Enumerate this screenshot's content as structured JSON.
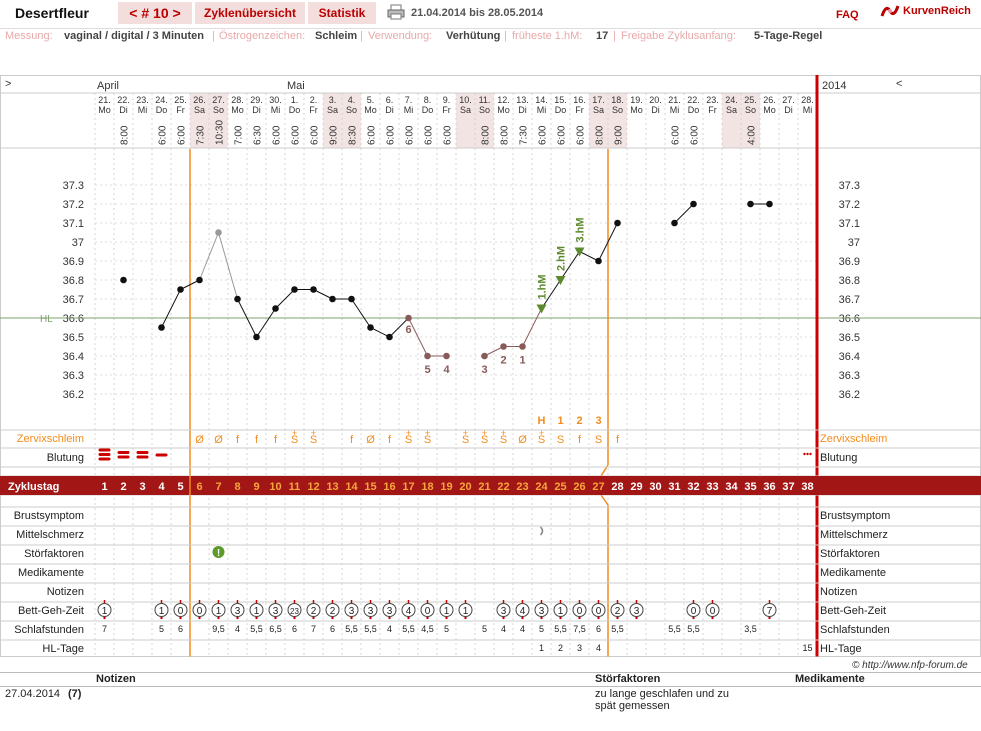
{
  "header": {
    "user": "Desertfleur",
    "cycle_tab": "< # 10 >",
    "overview_tab": "Zyklenübersicht",
    "stats_tab": "Statistik",
    "print_icon": "printer-icon",
    "range": "21.04.2014 bis 28.05.2014",
    "faq": "FAQ",
    "logo_text": "KurvenReich",
    "logo_icon": "kurvenreich-logo-icon"
  },
  "info": {
    "messung_label": "Messung:",
    "messung_value": "vaginal / digital / 3 Minuten",
    "oestro_label": "Östrogenzeichen:",
    "oestro_value": "Schleim",
    "verwendung_label": "Verwendung:",
    "verwendung_value": "Verhütung",
    "fruehste_label": "früheste 1.hM:",
    "fruehste_value": "17",
    "freigabe_label": "Freigabe Zyklusanfang:",
    "freigabe_value": "5-Tage-Regel"
  },
  "chart": {
    "nav_left": ">",
    "nav_right": "<",
    "year": "2014",
    "month1": "April",
    "month2": "Mai",
    "hl_label": "HL",
    "hl_value": 36.6,
    "y_ticks": [
      "37.3",
      "37.2",
      "37.1",
      "37",
      "36.9",
      "36.8",
      "36.7",
      "36.6",
      "36.5",
      "36.4",
      "36.3",
      "36.2"
    ],
    "days": [
      "21.",
      "22.",
      "23.",
      "24.",
      "25.",
      "26.",
      "27.",
      "28.",
      "29.",
      "30.",
      "1.",
      "2.",
      "3.",
      "4.",
      "5.",
      "6.",
      "7.",
      "8.",
      "9.",
      "10.",
      "11.",
      "12.",
      "13.",
      "14.",
      "15.",
      "16.",
      "17.",
      "18.",
      "19.",
      "20.",
      "21.",
      "22.",
      "23.",
      "24.",
      "25.",
      "26.",
      "27.",
      "28."
    ],
    "weekdays": [
      "Mo",
      "Di",
      "Mi",
      "Do",
      "Fr",
      "Sa",
      "So",
      "Mo",
      "Di",
      "Mi",
      "Do",
      "Fr",
      "Sa",
      "So",
      "Mo",
      "Di",
      "Mi",
      "Do",
      "Fr",
      "Sa",
      "So",
      "Mo",
      "Di",
      "Mi",
      "Do",
      "Fr",
      "Sa",
      "So",
      "Mo",
      "Di",
      "Mi",
      "Do",
      "Fr",
      "Sa",
      "So",
      "Mo",
      "Di",
      "Mi"
    ],
    "times": [
      "",
      "8:00",
      "",
      "6:00",
      "6:00",
      "7:30",
      "10:30",
      "7:00",
      "6:30",
      "6:00",
      "6:00",
      "6:00",
      "9:00",
      "8:30",
      "6:00",
      "6:00",
      "6:00",
      "6:00",
      "6:00",
      "",
      "8:00",
      "8:00",
      "7:30",
      "6:00",
      "6:00",
      "6:00",
      "8:00",
      "9:00",
      "",
      "",
      "6:00",
      "6:00",
      "",
      "",
      "4:00",
      "",
      "",
      ""
    ],
    "weekend_cols": [
      5,
      6,
      12,
      13,
      19,
      20,
      26,
      27,
      33,
      34
    ],
    "temps": [
      null,
      36.8,
      null,
      36.55,
      36.75,
      36.8,
      37.05,
      36.7,
      36.5,
      36.65,
      36.75,
      36.75,
      36.7,
      36.7,
      36.55,
      36.5,
      36.6,
      36.4,
      36.4,
      null,
      36.4,
      36.45,
      36.45,
      36.65,
      36.8,
      36.95,
      36.9,
      37.1,
      null,
      null,
      37.1,
      37.2,
      null,
      null,
      37.2,
      37.2,
      null,
      null
    ],
    "excluded": [
      6,
      16,
      17,
      18,
      20,
      21,
      22
    ],
    "count_labels": [
      {
        "i": 16,
        "t": "6"
      },
      {
        "i": 17,
        "t": "5"
      },
      {
        "i": 18,
        "t": "4"
      },
      {
        "i": 20,
        "t": "3"
      },
      {
        "i": 21,
        "t": "2"
      },
      {
        "i": 22,
        "t": "1"
      }
    ],
    "hm_labels": [
      {
        "i": 23,
        "t": "1.hM"
      },
      {
        "i": 24,
        "t": "2.hM"
      },
      {
        "i": 25,
        "t": "3.hM"
      }
    ],
    "mucus_counts": [
      {
        "i": 23,
        "t": "H"
      },
      {
        "i": 24,
        "t": "1"
      },
      {
        "i": 25,
        "t": "2"
      },
      {
        "i": 26,
        "t": "3"
      }
    ],
    "mucus_label": "Zervixschleim",
    "mucus": [
      "",
      "",
      "",
      "",
      "",
      "Ø",
      "Ø",
      "f",
      "f",
      "f",
      "S+",
      "S+",
      "",
      "f",
      "Ø",
      "f",
      "S+",
      "S+",
      "",
      "S+",
      "S+",
      "S+",
      "Ø",
      "S+",
      "S",
      "f",
      "S",
      "f",
      "",
      "",
      "",
      "",
      "",
      "",
      "",
      "",
      "",
      ""
    ],
    "bleeding_label": "Blutung",
    "bleeding": [
      3,
      2,
      2,
      1,
      0,
      0,
      0,
      0,
      0,
      0,
      0,
      0,
      0,
      0,
      0,
      0,
      0,
      0,
      0,
      0,
      0,
      0,
      0,
      0,
      0,
      0,
      0,
      0,
      0,
      0,
      0,
      0,
      0,
      0,
      0,
      0,
      0,
      3
    ],
    "cycle_label": "Zyklustag",
    "cycle_days": [
      "1",
      "2",
      "3",
      "4",
      "5",
      "6",
      "7",
      "8",
      "9",
      "10",
      "11",
      "12",
      "13",
      "14",
      "15",
      "16",
      "17",
      "18",
      "19",
      "20",
      "21",
      "22",
      "23",
      "24",
      "25",
      "26",
      "27",
      "28",
      "29",
      "30",
      "31",
      "32",
      "33",
      "34",
      "35",
      "36",
      "37",
      "38"
    ],
    "rows": [
      "Brustsymptom",
      "Mittelschmerz",
      "Störfaktoren",
      "Medikamente",
      "Notizen",
      "Bett-Geh-Zeit",
      "Schlafstunden",
      "HL-Tage"
    ],
    "disturb_icon": "warning-icon",
    "bedtime": [
      "1",
      "",
      "",
      "1",
      "0",
      "0",
      "1",
      "3",
      "1",
      "3",
      "23",
      "2",
      "2",
      "3",
      "3",
      "3",
      "4",
      "0",
      "1",
      "1",
      "",
      "3",
      "4",
      "3",
      "1",
      "0",
      "0",
      "2",
      "3",
      "",
      "",
      "0",
      "0",
      "",
      "",
      "7",
      "",
      ""
    ],
    "sleep": [
      "7",
      "",
      "",
      "5",
      "6",
      "",
      "9,5",
      "4",
      "5,5",
      "6,5",
      "6",
      "7",
      "6",
      "5,5",
      "5,5",
      "4",
      "5,5",
      "4,5",
      "5",
      "",
      "5",
      "4",
      "4",
      "5",
      "5,5",
      "7,5",
      "6",
      "5,5",
      "",
      "",
      "5,5",
      "5,5",
      "",
      "",
      "3,5",
      "",
      "",
      ""
    ],
    "hl_days": [
      "",
      "",
      "",
      "",
      "",
      "",
      "",
      "",
      "",
      "",
      "",
      "",
      "",
      "",
      "",
      "",
      "",
      "",
      "",
      "",
      "",
      "",
      "",
      "1",
      "2",
      "3",
      "4",
      "",
      "",
      "",
      "",
      "",
      "",
      "",
      "",
      "",
      "",
      "15"
    ]
  },
  "notes": {
    "col_notizen": "Notizen",
    "col_stoer": "Störfaktoren",
    "col_medi": "Medikamente",
    "date": "27.04.2014",
    "day": "(7)",
    "stoer_text1": "zu lange geschlafen und zu",
    "stoer_text2": "spät gemessen"
  },
  "copyright": "© http://www.nfp-forum.de"
}
